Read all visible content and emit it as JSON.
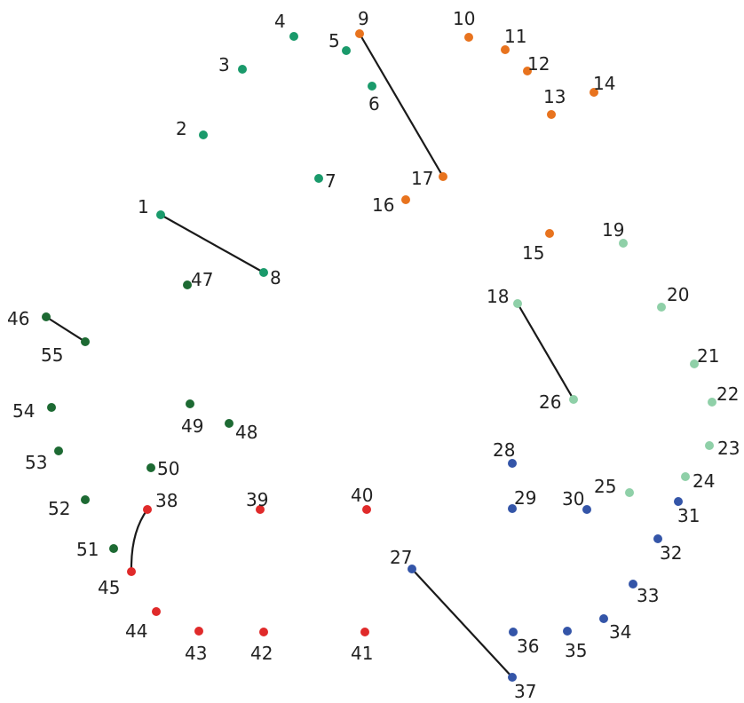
{
  "colors": {
    "green": "#1a9a6b",
    "orange": "#e8731e",
    "light_green": "#8fd0a8",
    "blue": "#3455a8",
    "red": "#e02a2a",
    "dark_green": "#1d6a33",
    "line": "#1a1a1a",
    "label": "#222222"
  },
  "dots": [
    {
      "n": "1",
      "color": "green"
    },
    {
      "n": "2",
      "color": "green"
    },
    {
      "n": "3",
      "color": "green"
    },
    {
      "n": "4",
      "color": "green"
    },
    {
      "n": "5",
      "color": "green"
    },
    {
      "n": "6",
      "color": "green"
    },
    {
      "n": "7",
      "color": "green"
    },
    {
      "n": "8",
      "color": "green"
    },
    {
      "n": "9",
      "color": "orange"
    },
    {
      "n": "10",
      "color": "orange"
    },
    {
      "n": "11",
      "color": "orange"
    },
    {
      "n": "12",
      "color": "orange"
    },
    {
      "n": "13",
      "color": "orange"
    },
    {
      "n": "14",
      "color": "orange"
    },
    {
      "n": "15",
      "color": "orange"
    },
    {
      "n": "16",
      "color": "orange"
    },
    {
      "n": "17",
      "color": "orange"
    },
    {
      "n": "18",
      "color": "light_green"
    },
    {
      "n": "19",
      "color": "light_green"
    },
    {
      "n": "20",
      "color": "light_green"
    },
    {
      "n": "21",
      "color": "light_green"
    },
    {
      "n": "22",
      "color": "light_green"
    },
    {
      "n": "23",
      "color": "light_green"
    },
    {
      "n": "24",
      "color": "light_green"
    },
    {
      "n": "25",
      "color": "light_green"
    },
    {
      "n": "26",
      "color": "light_green"
    },
    {
      "n": "27",
      "color": "blue"
    },
    {
      "n": "28",
      "color": "blue"
    },
    {
      "n": "29",
      "color": "blue"
    },
    {
      "n": "30",
      "color": "blue"
    },
    {
      "n": "31",
      "color": "blue"
    },
    {
      "n": "32",
      "color": "blue"
    },
    {
      "n": "33",
      "color": "blue"
    },
    {
      "n": "34",
      "color": "blue"
    },
    {
      "n": "35",
      "color": "blue"
    },
    {
      "n": "36",
      "color": "blue"
    },
    {
      "n": "37",
      "color": "blue"
    },
    {
      "n": "38",
      "color": "red"
    },
    {
      "n": "39",
      "color": "red"
    },
    {
      "n": "40",
      "color": "red"
    },
    {
      "n": "41",
      "color": "red"
    },
    {
      "n": "42",
      "color": "red"
    },
    {
      "n": "43",
      "color": "red"
    },
    {
      "n": "44",
      "color": "red"
    },
    {
      "n": "45",
      "color": "red"
    },
    {
      "n": "46",
      "color": "dark_green"
    },
    {
      "n": "47",
      "color": "dark_green"
    },
    {
      "n": "48",
      "color": "dark_green"
    },
    {
      "n": "49",
      "color": "dark_green"
    },
    {
      "n": "50",
      "color": "dark_green"
    },
    {
      "n": "51",
      "color": "dark_green"
    },
    {
      "n": "52",
      "color": "dark_green"
    },
    {
      "n": "53",
      "color": "dark_green"
    },
    {
      "n": "54",
      "color": "dark_green"
    },
    {
      "n": "55",
      "color": "dark_green"
    }
  ],
  "connections": [
    {
      "from": "1",
      "to": "8"
    },
    {
      "from": "9",
      "to": "17"
    },
    {
      "from": "18",
      "to": "26"
    },
    {
      "from": "27",
      "to": "37"
    },
    {
      "from": "38",
      "to": "45"
    },
    {
      "from": "46",
      "to": "55"
    }
  ]
}
